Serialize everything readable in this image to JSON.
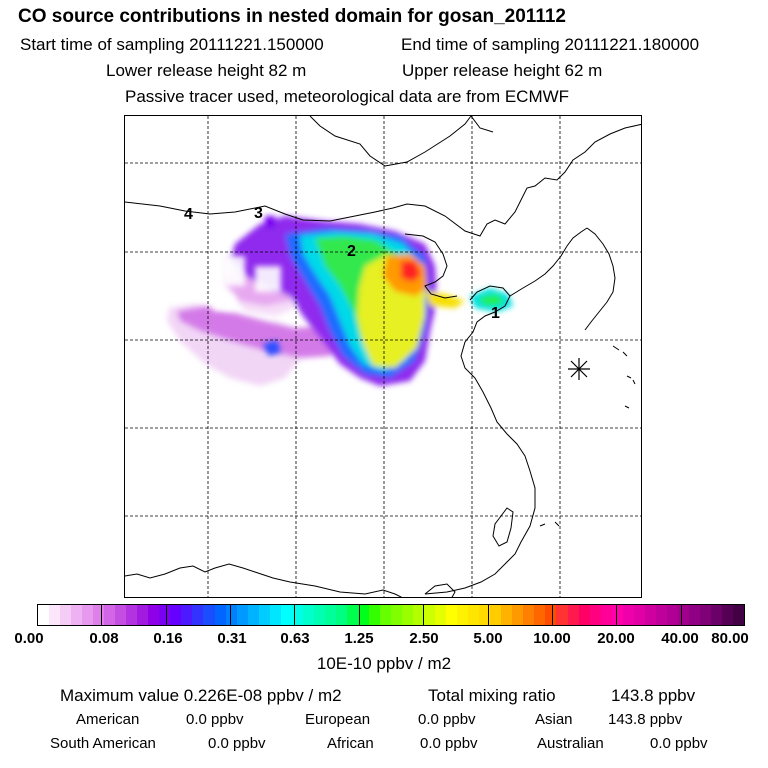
{
  "header": {
    "title": "CO  source contributions in nested domain for gosan_201112",
    "start_label": "Start time of sampling 20111221.150000",
    "end_label": "End time of sampling 20111221.180000",
    "lower_label": "Lower release height   82 m",
    "upper_label": "Upper release height   62 m",
    "tracer_note": "Passive tracer used, meteorological data are from ECMWF"
  },
  "map": {
    "source_labels": [
      "1",
      "2",
      "3",
      "4"
    ],
    "receptor_marker": "asterisk-marker"
  },
  "colorbar": {
    "ticks": [
      "0.00",
      "0.08",
      "0.16",
      "0.31",
      "0.63",
      "1.25",
      "2.50",
      "5.00",
      "10.00",
      "20.00",
      "40.00",
      "80.00"
    ],
    "units": "10E-10 ppbv / m2",
    "colors": [
      "#ffffff",
      "#fbe6fb",
      "#f5ccf6",
      "#eeb2f2",
      "#e699ee",
      "#de80ea",
      "#d266e6",
      "#c44de2",
      "#b333e0",
      "#a11ae0",
      "#8f00e6",
      "#7a00f2",
      "#6600ff",
      "#4d1aff",
      "#3333ff",
      "#1a4dff",
      "#0066ff",
      "#0080ff",
      "#0099ff",
      "#00b3ff",
      "#00ccff",
      "#00e6ff",
      "#00ffff",
      "#00ffe6",
      "#00ffcc",
      "#00ffb3",
      "#00ff99",
      "#00ff80",
      "#00ff4d",
      "#00ff1a",
      "#33ff00",
      "#66ff00",
      "#80ff00",
      "#99ff00",
      "#b3ff00",
      "#ccff00",
      "#e6ff00",
      "#ffff00",
      "#fff200",
      "#ffe600",
      "#ffd900",
      "#ffcc00",
      "#ffb300",
      "#ff9900",
      "#ff8000",
      "#ff6600",
      "#ff4d00",
      "#ff3333",
      "#ff1a4d",
      "#ff0066",
      "#ff0080",
      "#ff0099",
      "#ff00aa",
      "#f000aa",
      "#e000a6",
      "#d000a0",
      "#c0009a",
      "#b00094",
      "#a0008c",
      "#900084",
      "#800078",
      "#6a0068",
      "#550055",
      "#440044"
    ]
  },
  "stats": {
    "max_label": "Maximum value  0.226E-08 ppbv / m2",
    "total_label": "Total mixing ratio",
    "total_value": "143.8 ppbv",
    "american_label": "American",
    "american_value": "0.0 ppbv",
    "european_label": "European",
    "european_value": "0.0 ppbv",
    "asian_label": "Asian",
    "asian_value": "143.8 ppbv",
    "south_american_label": "South American",
    "south_american_value": "0.0 ppbv",
    "african_label": "African",
    "african_value": "0.0 ppbv",
    "australian_label": "Australian",
    "australian_value": "0.0 ppbv"
  }
}
